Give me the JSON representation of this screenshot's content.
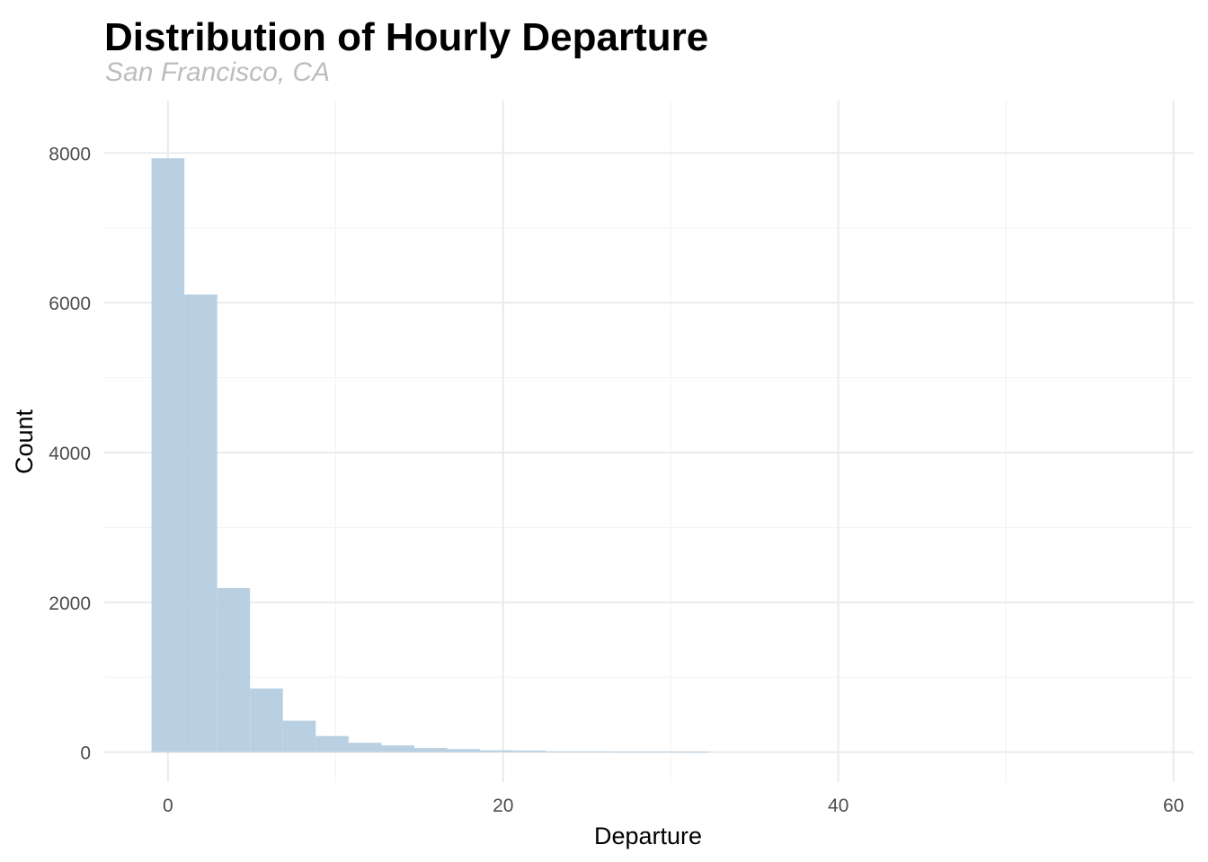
{
  "chart_data": {
    "type": "bar",
    "title": "Distribution of Hourly Departure",
    "subtitle": "San Francisco, CA",
    "xlabel": "Departure",
    "ylabel": "Count",
    "xlim": [
      -3.8,
      61.2
    ],
    "ylim": [
      -400,
      8700
    ],
    "x_ticks": [
      0,
      20,
      40,
      60
    ],
    "x_tick_labels": [
      "0",
      "20",
      "40",
      "60"
    ],
    "y_ticks": [
      0,
      2000,
      4000,
      6000,
      8000
    ],
    "y_tick_labels": [
      "0",
      "2000",
      "4000",
      "6000",
      "8000"
    ],
    "bin_width": 1.96,
    "bins": [
      {
        "x0": -0.98,
        "x1": 0.98,
        "count": 7930
      },
      {
        "x0": 0.98,
        "x1": 2.94,
        "count": 6110
      },
      {
        "x0": 2.94,
        "x1": 4.9,
        "count": 2190
      },
      {
        "x0": 4.9,
        "x1": 6.86,
        "count": 850
      },
      {
        "x0": 6.86,
        "x1": 8.82,
        "count": 420
      },
      {
        "x0": 8.82,
        "x1": 10.78,
        "count": 215
      },
      {
        "x0": 10.78,
        "x1": 12.74,
        "count": 125
      },
      {
        "x0": 12.74,
        "x1": 14.7,
        "count": 90
      },
      {
        "x0": 14.7,
        "x1": 16.66,
        "count": 55
      },
      {
        "x0": 16.66,
        "x1": 18.62,
        "count": 40
      },
      {
        "x0": 18.62,
        "x1": 20.58,
        "count": 25
      },
      {
        "x0": 20.58,
        "x1": 22.54,
        "count": 22
      },
      {
        "x0": 22.54,
        "x1": 24.5,
        "count": 10
      },
      {
        "x0": 24.5,
        "x1": 26.46,
        "count": 10
      },
      {
        "x0": 26.46,
        "x1": 28.42,
        "count": 8
      },
      {
        "x0": 28.42,
        "x1": 30.38,
        "count": 8
      },
      {
        "x0": 30.38,
        "x1": 32.34,
        "count": 5
      }
    ],
    "colors": {
      "bar": "#b8d0e2",
      "grid_major": "#ebebeb",
      "grid_minor": "#f2f2f2"
    },
    "grid": true,
    "legend": "none"
  }
}
